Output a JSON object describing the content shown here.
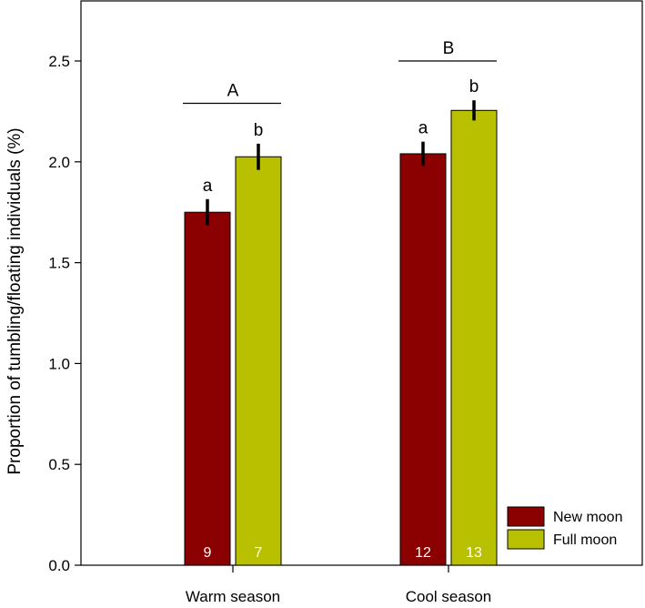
{
  "chart_data": {
    "type": "bar",
    "title": "",
    "xlabel": "",
    "ylabel": "Proportion of tumbling/floating individuals (%)",
    "ylim": [
      0,
      2.75
    ],
    "yticks": [
      0.0,
      0.5,
      1.0,
      1.5,
      2.0,
      2.5
    ],
    "ytick_labels": [
      "0.0",
      "0.5",
      "1.0",
      "1.5",
      "2.0",
      "2.5"
    ],
    "categories": [
      "Warm season",
      "Cool season"
    ],
    "series": [
      {
        "name": "New moon",
        "color": "#8b0000",
        "values": [
          1.75,
          2.04
        ],
        "errors": [
          0.065,
          0.06
        ],
        "sig_letters": [
          "a",
          "a"
        ],
        "n": [
          "9",
          "12"
        ]
      },
      {
        "name": "Full moon",
        "color": "#b8c000",
        "values": [
          2.025,
          2.255
        ],
        "errors": [
          0.065,
          0.05
        ],
        "sig_letters": [
          "b",
          "b"
        ],
        "n": [
          "7",
          "13"
        ]
      }
    ],
    "group_letters": [
      "A",
      "B"
    ],
    "group_bracket_levels": [
      2.29,
      2.5
    ],
    "legend": {
      "position": "bottom-right",
      "entries": [
        "New moon",
        "Full moon"
      ]
    },
    "grid": false
  }
}
